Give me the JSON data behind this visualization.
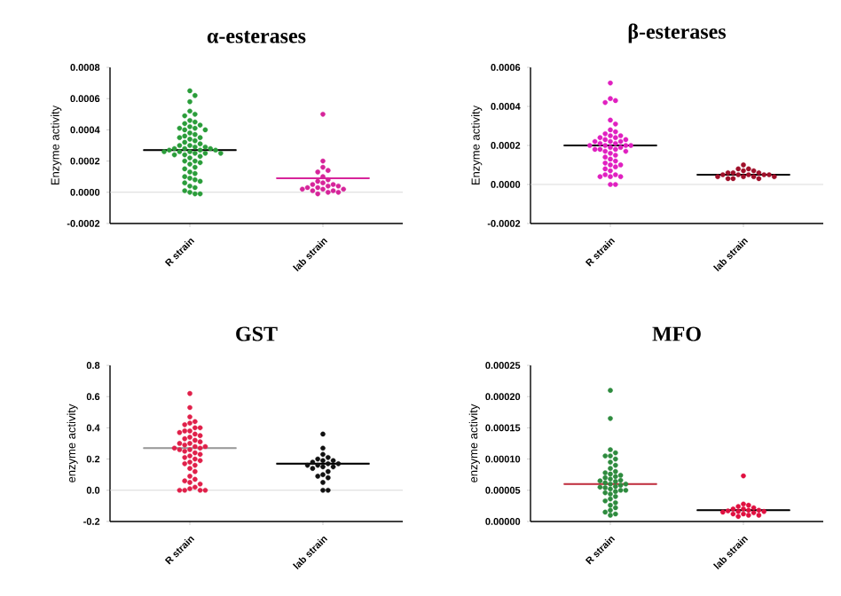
{
  "chart_data": [
    {
      "type": "scatter",
      "title": "α-esterases",
      "ylabel": "Enzyme activity",
      "categories": [
        "R strain",
        "lab strain"
      ],
      "marker": "circle",
      "ylim": [
        -0.0002,
        0.0008
      ],
      "yticks": [
        {
          "value": -0.0002,
          "label": "-0.0002"
        },
        {
          "value": 0,
          "label": "0.0000"
        },
        {
          "value": 0.0002,
          "label": "0.0002"
        },
        {
          "value": 0.0004,
          "label": "0.0004"
        },
        {
          "value": 0.0006,
          "label": "0.0006"
        },
        {
          "value": 0.0008,
          "label": "0.0008"
        }
      ],
      "ref_lines": [
        {
          "axis": "y",
          "value": 0,
          "color": "#d0d0d0"
        }
      ],
      "series": [
        {
          "color": "#2a9d3a",
          "x": [
            "R strain",
            "R strain",
            "R strain",
            "R strain",
            "R strain",
            "R strain",
            "R strain",
            "R strain",
            "R strain",
            "R strain",
            "R strain",
            "R strain",
            "R strain",
            "R strain",
            "R strain",
            "R strain",
            "R strain",
            "R strain",
            "R strain",
            "R strain",
            "R strain",
            "R strain",
            "R strain",
            "R strain",
            "R strain",
            "R strain",
            "R strain",
            "R strain",
            "R strain",
            "R strain",
            "R strain",
            "R strain",
            "R strain",
            "R strain",
            "R strain",
            "R strain",
            "R strain",
            "R strain",
            "R strain",
            "R strain",
            "R strain",
            "R strain",
            "R strain",
            "R strain",
            "R strain",
            "R strain",
            "R strain",
            "R strain",
            "R strain",
            "R strain",
            "R strain",
            "R strain",
            "R strain",
            "R strain",
            "R strain",
            "R strain",
            "R strain",
            "R strain",
            "R strain",
            "R strain",
            "R strain",
            "R strain",
            "R strain"
          ],
          "values": [
            0.00065,
            0.00062,
            0.00058,
            0.00052,
            0.0005,
            0.00049,
            0.00046,
            0.00045,
            0.00044,
            0.00043,
            0.00042,
            0.00041,
            0.00041,
            0.0004,
            0.0004,
            0.00038,
            0.00037,
            0.00036,
            0.00035,
            0.00035,
            0.00034,
            0.00033,
            0.00032,
            0.00031,
            0.0003,
            0.0003,
            0.00029,
            0.00029,
            0.00028,
            0.00028,
            0.00028,
            0.00027,
            0.00027,
            0.00027,
            0.00026,
            0.00026,
            0.00026,
            0.00025,
            0.00025,
            0.00025,
            0.00024,
            0.00024,
            0.00023,
            0.00022,
            0.0002,
            0.0002,
            0.00019,
            0.00018,
            0.00016,
            0.00015,
            0.00013,
            0.00012,
            0.0001,
            9e-05,
            8e-05,
            7e-05,
            6e-05,
            4e-05,
            3e-05,
            1e-05,
            0.0,
            -1e-05,
            -1e-05
          ]
        },
        {
          "color": "#d6249a",
          "x": [
            "lab strain",
            "lab strain",
            "lab strain",
            "lab strain",
            "lab strain",
            "lab strain",
            "lab strain",
            "lab strain",
            "lab strain",
            "lab strain",
            "lab strain",
            "lab strain",
            "lab strain",
            "lab strain",
            "lab strain",
            "lab strain",
            "lab strain",
            "lab strain",
            "lab strain",
            "lab strain",
            "lab strain",
            "lab strain",
            "lab strain"
          ],
          "values": [
            0.0005,
            0.0002,
            0.00016,
            0.00014,
            0.00013,
            0.0001,
            8e-05,
            7e-05,
            6e-05,
            5e-05,
            5e-05,
            4e-05,
            4e-05,
            3e-05,
            3e-05,
            2e-05,
            2e-05,
            2e-05,
            1e-05,
            1e-05,
            0,
            0,
            -1e-05
          ]
        },
        {
          "type": "box",
          "colors": [
            "#000000",
            "#d6249a"
          ],
          "boxes": [
            {
              "low": 0.00027,
              "q1": 0.00027,
              "median": 0.00027,
              "q3": 0.00027,
              "high": 0.00027
            },
            {
              "low": 9e-05,
              "q1": 9e-05,
              "median": 9e-05,
              "q3": 9e-05,
              "high": 9e-05
            }
          ]
        }
      ]
    },
    {
      "type": "scatter",
      "title": "β-esterases",
      "ylabel": "Enzyme activity",
      "categories": [
        "R strain",
        "lab strain"
      ],
      "marker": "circle",
      "ylim": [
        -0.0002,
        0.0006
      ],
      "yticks": [
        {
          "value": -0.0002,
          "label": "-0.0002"
        },
        {
          "value": 0,
          "label": "0.0000"
        },
        {
          "value": 0.0002,
          "label": "0.0002"
        },
        {
          "value": 0.0004,
          "label": "0.0004"
        },
        {
          "value": 0.0006,
          "label": "0.0006"
        }
      ],
      "ref_lines": [
        {
          "axis": "y",
          "value": 0,
          "color": "#d0d0d0"
        }
      ],
      "series": [
        {
          "color": "#e020c0",
          "x": [
            "R strain",
            "R strain",
            "R strain",
            "R strain",
            "R strain",
            "R strain",
            "R strain",
            "R strain",
            "R strain",
            "R strain",
            "R strain",
            "R strain",
            "R strain",
            "R strain",
            "R strain",
            "R strain",
            "R strain",
            "R strain",
            "R strain",
            "R strain",
            "R strain",
            "R strain",
            "R strain",
            "R strain",
            "R strain",
            "R strain",
            "R strain",
            "R strain",
            "R strain",
            "R strain",
            "R strain",
            "R strain",
            "R strain",
            "R strain",
            "R strain",
            "R strain",
            "R strain",
            "R strain",
            "R strain",
            "R strain",
            "R strain",
            "R strain",
            "R strain",
            "R strain",
            "R strain",
            "R strain",
            "R strain",
            "R strain",
            "R strain"
          ],
          "values": [
            0.00052,
            0.00044,
            0.00043,
            0.00042,
            0.00033,
            0.00031,
            0.00028,
            0.00027,
            0.00026,
            0.00025,
            0.00025,
            0.00024,
            0.00024,
            0.00023,
            0.00023,
            0.00022,
            0.00022,
            0.00022,
            0.00021,
            0.00021,
            0.0002,
            0.0002,
            0.0002,
            0.0002,
            0.00019,
            0.00019,
            0.00018,
            0.00018,
            0.00018,
            0.00017,
            0.00017,
            0.00016,
            0.00015,
            0.00014,
            0.00013,
            0.00012,
            0.00011,
            0.0001,
            0.0001,
            9e-05,
            8e-05,
            7e-05,
            5e-05,
            5e-05,
            4e-05,
            4e-05,
            4e-05,
            0.0,
            0.0
          ]
        },
        {
          "color": "#a0102a",
          "x": [
            "lab strain",
            "lab strain",
            "lab strain",
            "lab strain",
            "lab strain",
            "lab strain",
            "lab strain",
            "lab strain",
            "lab strain",
            "lab strain",
            "lab strain",
            "lab strain",
            "lab strain",
            "lab strain",
            "lab strain",
            "lab strain",
            "lab strain",
            "lab strain",
            "lab strain",
            "lab strain"
          ],
          "values": [
            0.0001,
            8e-05,
            8e-05,
            7e-05,
            7e-05,
            6e-05,
            6e-05,
            6e-05,
            5e-05,
            5e-05,
            5e-05,
            5e-05,
            5e-05,
            4e-05,
            4e-05,
            4e-05,
            4e-05,
            3e-05,
            3e-05,
            3e-05
          ]
        },
        {
          "type": "box",
          "colors": [
            "#000000",
            "#000000"
          ],
          "boxes": [
            {
              "low": 0.0002,
              "q1": 0.0002,
              "median": 0.0002,
              "q3": 0.0002,
              "high": 0.0002
            },
            {
              "low": 5e-05,
              "q1": 5e-05,
              "median": 5e-05,
              "q3": 5e-05,
              "high": 5e-05
            }
          ]
        }
      ]
    },
    {
      "type": "scatter",
      "title": "GST",
      "ylabel": "enzyme activity",
      "categories": [
        "R strain",
        "lab strain"
      ],
      "marker": "circle",
      "ylim": [
        -0.2,
        0.8
      ],
      "yticks": [
        {
          "value": -0.2,
          "label": "-0.2"
        },
        {
          "value": 0,
          "label": "0.0"
        },
        {
          "value": 0.2,
          "label": "0.2"
        },
        {
          "value": 0.4,
          "label": "0.4"
        },
        {
          "value": 0.6,
          "label": "0.6"
        },
        {
          "value": 0.8,
          "label": "0.8"
        }
      ],
      "ref_lines": [
        {
          "axis": "y",
          "value": 0,
          "color": "#d0d0d0"
        }
      ],
      "series": [
        {
          "color": "#e0204a",
          "x": [
            "R strain",
            "R strain",
            "R strain",
            "R strain",
            "R strain",
            "R strain",
            "R strain",
            "R strain",
            "R strain",
            "R strain",
            "R strain",
            "R strain",
            "R strain",
            "R strain",
            "R strain",
            "R strain",
            "R strain",
            "R strain",
            "R strain",
            "R strain",
            "R strain",
            "R strain",
            "R strain",
            "R strain",
            "R strain",
            "R strain",
            "R strain",
            "R strain",
            "R strain",
            "R strain",
            "R strain",
            "R strain",
            "R strain",
            "R strain",
            "R strain",
            "R strain",
            "R strain",
            "R strain",
            "R strain",
            "R strain",
            "R strain",
            "R strain",
            "R strain",
            "R strain",
            "R strain",
            "R strain",
            "R strain",
            "R strain",
            "R strain"
          ],
          "values": [
            0.62,
            0.53,
            0.47,
            0.44,
            0.43,
            0.42,
            0.4,
            0.4,
            0.38,
            0.38,
            0.37,
            0.36,
            0.35,
            0.34,
            0.33,
            0.32,
            0.31,
            0.3,
            0.3,
            0.29,
            0.28,
            0.28,
            0.27,
            0.27,
            0.26,
            0.26,
            0.25,
            0.24,
            0.23,
            0.22,
            0.21,
            0.2,
            0.19,
            0.18,
            0.17,
            0.16,
            0.14,
            0.12,
            0.09,
            0.07,
            0.06,
            0.05,
            0.04,
            0.02,
            0.01,
            0,
            0,
            0,
            0
          ]
        },
        {
          "color": "#111111",
          "x": [
            "lab strain",
            "lab strain",
            "lab strain",
            "lab strain",
            "lab strain",
            "lab strain",
            "lab strain",
            "lab strain",
            "lab strain",
            "lab strain",
            "lab strain",
            "lab strain",
            "lab strain",
            "lab strain",
            "lab strain",
            "lab strain",
            "lab strain",
            "lab strain",
            "lab strain",
            "lab strain",
            "lab strain",
            "lab strain"
          ],
          "values": [
            0.36,
            0.27,
            0.23,
            0.21,
            0.2,
            0.19,
            0.19,
            0.18,
            0.17,
            0.17,
            0.16,
            0.16,
            0.15,
            0.15,
            0.14,
            0.12,
            0.1,
            0.09,
            0.08,
            0.05,
            0,
            0
          ]
        },
        {
          "type": "box",
          "colors": [
            "#999999",
            "#000000"
          ],
          "boxes": [
            {
              "low": 0.27,
              "q1": 0.27,
              "median": 0.27,
              "q3": 0.27,
              "high": 0.27
            },
            {
              "low": 0.17,
              "q1": 0.17,
              "median": 0.17,
              "q3": 0.17,
              "high": 0.17
            }
          ]
        }
      ]
    },
    {
      "type": "scatter",
      "title": "MFO",
      "ylabel": "enzyme activity",
      "categories": [
        "R strain",
        "lab strain"
      ],
      "marker": "circle",
      "ylim": [
        0,
        0.00025
      ],
      "yticks": [
        {
          "value": 0,
          "label": "0.00000"
        },
        {
          "value": 5e-05,
          "label": "0.00005"
        },
        {
          "value": 0.0001,
          "label": "0.00010"
        },
        {
          "value": 0.00015,
          "label": "0.00015"
        },
        {
          "value": 0.0002,
          "label": "0.00020"
        },
        {
          "value": 0.00025,
          "label": "0.00025"
        }
      ],
      "series": [
        {
          "color": "#2e8b3e",
          "x": [
            "R strain",
            "R strain",
            "R strain",
            "R strain",
            "R strain",
            "R strain",
            "R strain",
            "R strain",
            "R strain",
            "R strain",
            "R strain",
            "R strain",
            "R strain",
            "R strain",
            "R strain",
            "R strain",
            "R strain",
            "R strain",
            "R strain",
            "R strain",
            "R strain",
            "R strain",
            "R strain",
            "R strain",
            "R strain",
            "R strain",
            "R strain",
            "R strain",
            "R strain",
            "R strain",
            "R strain",
            "R strain",
            "R strain",
            "R strain",
            "R strain",
            "R strain",
            "R strain",
            "R strain",
            "R strain",
            "R strain",
            "R strain",
            "R strain",
            "R strain"
          ],
          "values": [
            0.00021,
            0.000165,
            0.000115,
            0.00011,
            0.000105,
            0.000105,
            0.0001,
            9.5e-05,
            9e-05,
            8.5e-05,
            8e-05,
            7.8e-05,
            7.6e-05,
            7.4e-05,
            7.2e-05,
            7e-05,
            6.8e-05,
            6.6e-05,
            6.5e-05,
            6.4e-05,
            6.2e-05,
            6e-05,
            6e-05,
            5.8e-05,
            5.6e-05,
            5.5e-05,
            5.4e-05,
            5.2e-05,
            5e-05,
            5e-05,
            4.8e-05,
            4.6e-05,
            4.4e-05,
            4e-05,
            3.6e-05,
            3.3e-05,
            3e-05,
            2.6e-05,
            2.2e-05,
            1.8e-05,
            1.5e-05,
            1.2e-05,
            1e-05
          ]
        },
        {
          "color": "#e01040",
          "x": [
            "lab strain",
            "lab strain",
            "lab strain",
            "lab strain",
            "lab strain",
            "lab strain",
            "lab strain",
            "lab strain",
            "lab strain",
            "lab strain",
            "lab strain",
            "lab strain",
            "lab strain",
            "lab strain",
            "lab strain",
            "lab strain",
            "lab strain",
            "lab strain",
            "lab strain"
          ],
          "values": [
            7.3e-05,
            2.8e-05,
            2.6e-05,
            2.4e-05,
            2.2e-05,
            2e-05,
            2e-05,
            1.8e-05,
            1.8e-05,
            1.7e-05,
            1.6e-05,
            1.6e-05,
            1.5e-05,
            1.4e-05,
            1.2e-05,
            1.2e-05,
            1e-05,
            1e-05,
            8e-06
          ]
        },
        {
          "type": "box",
          "colors": [
            "#c03040",
            "#000000"
          ],
          "boxes": [
            {
              "low": 6e-05,
              "q1": 6e-05,
              "median": 6e-05,
              "q3": 6e-05,
              "high": 6e-05
            },
            {
              "low": 1.8e-05,
              "q1": 1.8e-05,
              "median": 1.8e-05,
              "q3": 1.8e-05,
              "high": 1.8e-05
            }
          ]
        }
      ]
    }
  ]
}
